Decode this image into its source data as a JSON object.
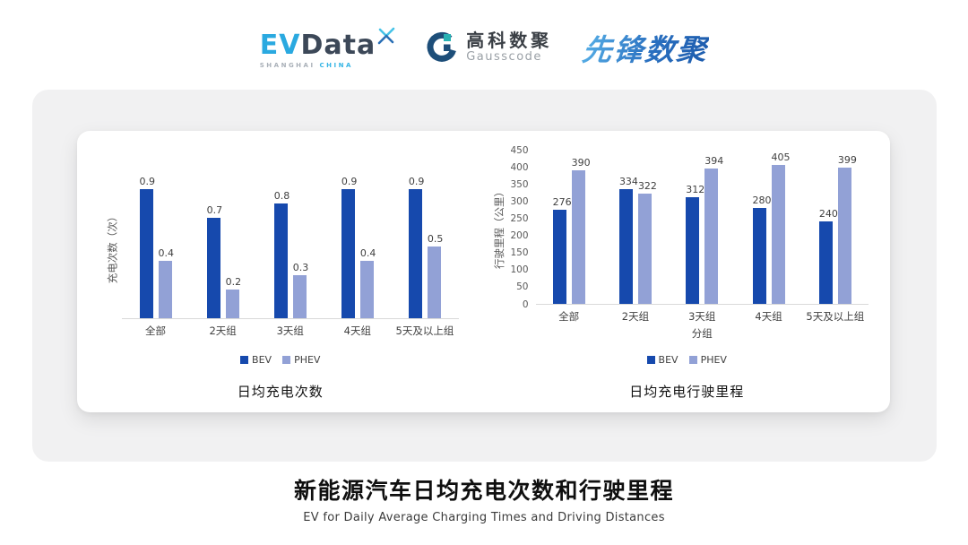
{
  "header": {
    "evdata": {
      "ev": "EV",
      "data": "Data",
      "sub_shanghai": "SHANGHAI",
      "sub_china": "CHINA"
    },
    "gausscode": {
      "cn": "高科数聚",
      "en": "Gausscode"
    },
    "xianfeng": "先锋数聚"
  },
  "colors": {
    "bev": "#1649ad",
    "phev": "#92a1d6",
    "panel_bg": "#f1f1f2",
    "card_bg": "#ffffff",
    "baseline": "#d9d9d9",
    "axis_text": "#595959",
    "logo_blue": "#2aa9e0",
    "logo_dark": "#3c4858"
  },
  "chart_data": [
    {
      "type": "bar",
      "title": "日均充电次数",
      "ylabel": "充电次数（次）",
      "xlabel": "",
      "categories": [
        "全部",
        "2天组",
        "3天组",
        "4天组",
        "5天及以上组"
      ],
      "series": [
        {
          "name": "BEV",
          "color": "#1649ad",
          "values": [
            0.9,
            0.7,
            0.8,
            0.9,
            0.9
          ]
        },
        {
          "name": "PHEV",
          "color": "#92a1d6",
          "values": [
            0.4,
            0.2,
            0.3,
            0.4,
            0.5
          ]
        }
      ],
      "ylim": [
        0,
        1.0
      ],
      "yticks": [],
      "grid": false,
      "legend_position": "bottom",
      "value_labels": true
    },
    {
      "type": "bar",
      "title": "日均充电行驶里程",
      "ylabel": "行驶里程（公里）",
      "xlabel": "分组",
      "categories": [
        "全部",
        "2天组",
        "3天组",
        "4天组",
        "5天及以上组"
      ],
      "series": [
        {
          "name": "BEV",
          "color": "#1649ad",
          "values": [
            276,
            334,
            312,
            280,
            240
          ]
        },
        {
          "name": "PHEV",
          "color": "#92a1d6",
          "values": [
            390,
            322,
            394,
            405,
            399
          ]
        }
      ],
      "ylim": [
        0,
        450
      ],
      "yticks": [
        0,
        50,
        100,
        150,
        200,
        250,
        300,
        350,
        400,
        450
      ],
      "grid": false,
      "legend_position": "bottom",
      "value_labels": true
    }
  ],
  "footer": {
    "title": "新能源汽车日均充电次数和行驶里程",
    "subtitle": "EV for Daily Average Charging Times and Driving Distances"
  }
}
